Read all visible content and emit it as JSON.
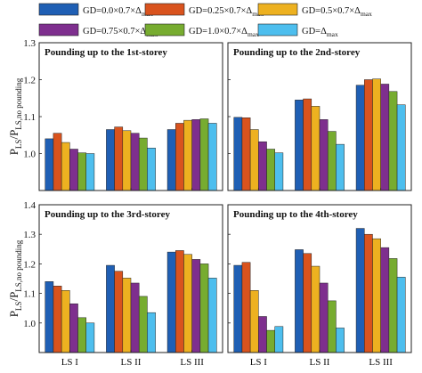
{
  "chart_data": {
    "type": "bar",
    "legend": {
      "placement": "top",
      "entries": [
        {
          "name": "GD=0.0×0.7×Δmax",
          "color": "#1f5fb4"
        },
        {
          "name": "GD=0.25×0.7×Δmax",
          "color": "#d9531e"
        },
        {
          "name": "GD=0.5×0.7×Δmax",
          "color": "#edb120"
        },
        {
          "name": "GD=0.75×0.7×Δmax",
          "color": "#7e2f8e"
        },
        {
          "name": "GD=1.0×0.7×Δmax",
          "color": "#77ac30"
        },
        {
          "name": "GD=Δmax",
          "color": "#4dbeee"
        }
      ]
    },
    "ylabel": "P_LS/P_LS,no pounding",
    "categories": [
      "LS I",
      "LS II",
      "LS III"
    ],
    "grid": false,
    "panels": [
      {
        "title": "Pounding up to the 1st-storey",
        "ylim": [
          0.9,
          1.3
        ],
        "yticks": [
          "1.0",
          "1.1",
          "1.2",
          "1.3"
        ],
        "values": [
          [
            1.04,
            1.055,
            1.03,
            1.012,
            1.002,
            1.0
          ],
          [
            1.065,
            1.072,
            1.062,
            1.055,
            1.042,
            1.015
          ],
          [
            1.065,
            1.082,
            1.09,
            1.092,
            1.094,
            1.082
          ]
        ]
      },
      {
        "title": "Pounding up to the 2nd-storey",
        "ylim": [
          0.9,
          1.3
        ],
        "yticks": [
          "1.0",
          "1.1",
          "1.2",
          "1.3"
        ],
        "values": [
          [
            1.098,
            1.097,
            1.065,
            1.032,
            1.012,
            1.002
          ],
          [
            1.145,
            1.148,
            1.128,
            1.092,
            1.06,
            1.025
          ],
          [
            1.185,
            1.2,
            1.202,
            1.188,
            1.168,
            1.132
          ]
        ]
      },
      {
        "title": "Pounding up to the 3rd-storey",
        "ylim": [
          0.9,
          1.4
        ],
        "yticks": [
          "1.0",
          "1.1",
          "1.2",
          "1.3",
          "1.4"
        ],
        "values": [
          [
            1.14,
            1.125,
            1.11,
            1.065,
            1.018,
            1.0
          ],
          [
            1.195,
            1.175,
            1.152,
            1.135,
            1.09,
            1.035
          ],
          [
            1.24,
            1.245,
            1.232,
            1.215,
            1.2,
            1.152
          ]
        ]
      },
      {
        "title": "Pounding up to the 4th-storey",
        "ylim": [
          0.9,
          1.4
        ],
        "yticks": [
          "1.0",
          "1.1",
          "1.2",
          "1.3",
          "1.4"
        ],
        "values": [
          [
            1.195,
            1.205,
            1.11,
            1.022,
            0.975,
            0.988
          ],
          [
            1.248,
            1.235,
            1.192,
            1.135,
            1.075,
            0.983
          ],
          [
            1.32,
            1.3,
            1.285,
            1.255,
            1.218,
            1.155
          ]
        ]
      }
    ]
  }
}
